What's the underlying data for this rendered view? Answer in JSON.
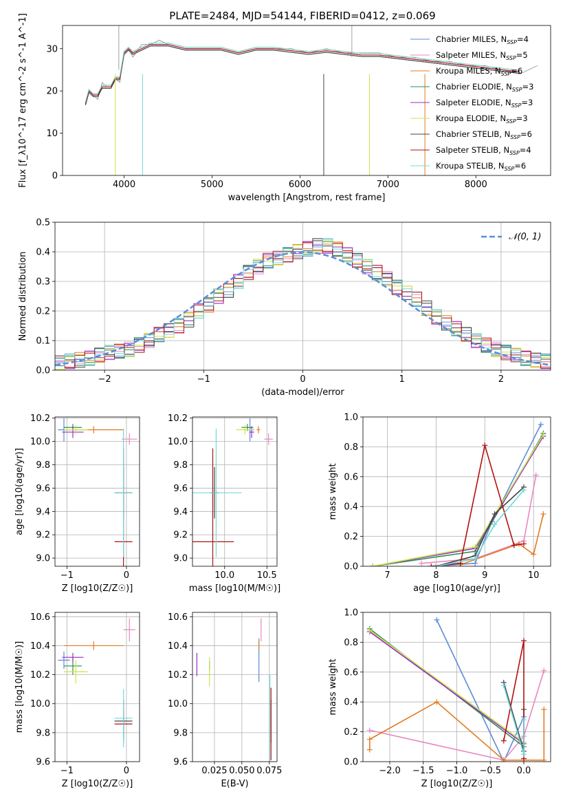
{
  "figure_title": "PLATE=2484, MJD=54144, FIBERID=0412, z=0.069",
  "colors": {
    "chabrier_miles": "#5b8bd8",
    "salpeter_miles": "#e887c0",
    "kroupa_miles": "#e07b20",
    "chabrier_elodie": "#2e8b57",
    "salpeter_elodie": "#9a2dc8",
    "kroupa_elodie": "#cbe640",
    "chabrier_stelib": "#444444",
    "salpeter_stelib": "#b01010",
    "kroupa_stelib": "#70d8dc",
    "gauss": "#5b8bd8",
    "grid": "#b0b0b0"
  },
  "chart_data": [
    {
      "id": "spectrum",
      "type": "line",
      "title": "PLATE=2484, MJD=54144, FIBERID=0412, z=0.069",
      "xlabel": "wavelength [Angstrom, rest frame]",
      "ylabel": "Flux [f_λ10^-17 erg cm^-2 s^-1 A^-1]",
      "xlim": [
        3300,
        8850
      ],
      "ylim": [
        0,
        35.5
      ],
      "xticks": [
        4000,
        5000,
        6000,
        7000,
        8000
      ],
      "yticks": [
        0,
        10,
        20,
        30
      ],
      "grid": false,
      "legend_position": "top-right",
      "legend": [
        "Chabrier MILES, N_SSP=4",
        "Salpeter MILES, N_SSP=5",
        "Kroupa MILES, N_SSP=6",
        "Chabrier ELODIE, N_SSP=3",
        "Salpeter ELODIE, N_SSP=3",
        "Kroupa ELODIE, N_SSP=3",
        "Chabrier STELIB, N_SSP=6",
        "Salpeter STELIB, N_SSP=4",
        "Kroupa STELIB, N_SSP=6"
      ],
      "data_spectrum": {
        "x": [
          3560,
          3600,
          3650,
          3700,
          3750,
          3800,
          3850,
          3900,
          3950,
          4000,
          4050,
          4100,
          4200,
          4300,
          4400,
          4500,
          4700,
          4900,
          5100,
          5300,
          5500,
          5700,
          5900,
          6100,
          6300,
          6500,
          6700,
          6900,
          7100,
          7300,
          7500,
          7700,
          7900,
          8100,
          8300,
          8500,
          8700
        ],
        "y": [
          17,
          20,
          19,
          18,
          22,
          21,
          21,
          23,
          22,
          29,
          30,
          28,
          31,
          31,
          32,
          31,
          30,
          30,
          30,
          29,
          30,
          30,
          30,
          29,
          30,
          29,
          29,
          29,
          28,
          28,
          27,
          27,
          26,
          26,
          25,
          24,
          26
        ]
      },
      "model_series": {
        "x": [
          3560,
          3600,
          3650,
          3700,
          3750,
          3800,
          3850,
          3900,
          3950,
          4000,
          4050,
          4100,
          4200,
          4300,
          4400,
          4500,
          4700,
          4900,
          5100,
          5300,
          5500,
          5700,
          5900,
          6100,
          6300,
          6500,
          6700,
          6900,
          7100,
          7300,
          7500,
          7700,
          7900,
          8100,
          8300,
          8500
        ],
        "y": [
          17,
          20,
          19,
          19,
          21,
          21,
          21,
          23,
          23,
          29,
          30,
          29,
          30,
          31,
          31,
          31,
          30,
          30,
          30,
          29,
          30,
          30,
          29.5,
          29,
          29.5,
          29,
          28.5,
          28.5,
          28,
          27.5,
          27,
          26.5,
          26,
          25.5,
          25,
          24.5
        ]
      }
    },
    {
      "id": "residuals",
      "type": "step",
      "xlabel": "(data-model)/error",
      "ylabel": "Normed distribution",
      "xlim": [
        -2.5,
        2.5
      ],
      "ylim": [
        0,
        0.5
      ],
      "xticks": [
        -2,
        -1,
        0,
        1,
        2
      ],
      "yticks": [
        0.0,
        0.1,
        0.2,
        0.3,
        0.4,
        0.5
      ],
      "grid": true,
      "legend_position": "top-right",
      "gauss_label": "𝒩(0, 1)",
      "bin_edges": [
        -2.5,
        -2.4,
        -2.3,
        -2.2,
        -2.1,
        -2.0,
        -1.9,
        -1.8,
        -1.7,
        -1.6,
        -1.5,
        -1.4,
        -1.3,
        -1.2,
        -1.1,
        -1.0,
        -0.9,
        -0.8,
        -0.7,
        -0.6,
        -0.5,
        -0.4,
        -0.3,
        -0.2,
        -0.1,
        0.0,
        0.1,
        0.2,
        0.3,
        0.4,
        0.5,
        0.6,
        0.7,
        0.8,
        0.9,
        1.0,
        1.1,
        1.2,
        1.3,
        1.4,
        1.5,
        1.6,
        1.7,
        1.8,
        1.9,
        2.0,
        2.1,
        2.2,
        2.3,
        2.4,
        2.5
      ],
      "base_values": [
        0.025,
        0.03,
        0.035,
        0.04,
        0.05,
        0.06,
        0.065,
        0.07,
        0.085,
        0.1,
        0.12,
        0.135,
        0.15,
        0.17,
        0.2,
        0.22,
        0.25,
        0.27,
        0.3,
        0.33,
        0.35,
        0.37,
        0.38,
        0.39,
        0.4,
        0.41,
        0.42,
        0.42,
        0.41,
        0.39,
        0.37,
        0.35,
        0.33,
        0.31,
        0.28,
        0.26,
        0.24,
        0.21,
        0.18,
        0.16,
        0.14,
        0.12,
        0.1,
        0.085,
        0.07,
        0.06,
        0.05,
        0.04,
        0.035,
        0.03
      ]
    },
    {
      "id": "age_vs_Z",
      "type": "errorbar",
      "xlabel": "Z [log10(Z/Z☉)]",
      "ylabel": "age  [log10(age/yr)]",
      "xlim": [
        -1.2,
        0.22
      ],
      "ylim": [
        8.93,
        10.21
      ],
      "xticks": [
        -1,
        0
      ],
      "yticks": [
        9.0,
        9.2,
        9.4,
        9.6,
        9.8,
        10.0,
        10.2
      ],
      "grid": true,
      "points": [
        {
          "s": "chabrier_miles",
          "x": -1.05,
          "y": 10.1,
          "xe": 0.1,
          "ye": 0.1
        },
        {
          "s": "salpeter_miles",
          "x": 0.05,
          "y": 10.02,
          "xe": 0.13,
          "ye": 0.05
        },
        {
          "s": "kroupa_miles",
          "x": -0.55,
          "y": 10.1,
          "xe": 0.5,
          "ye": 0.03
        },
        {
          "s": "chabrier_elodie",
          "x": -0.9,
          "y": 10.12,
          "xe": 0.15,
          "ye": 0.03
        },
        {
          "s": "salpeter_elodie",
          "x": -0.9,
          "y": 10.08,
          "xe": 0.18,
          "ye": 0.05
        },
        {
          "s": "kroupa_elodie",
          "x": -0.85,
          "y": 10.1,
          "xe": 0.2,
          "ye": 0.04
        },
        {
          "s": "chabrier_stelib",
          "x": -0.05,
          "y": 9.56,
          "xe": 0.15,
          "ye": 0.22
        },
        {
          "s": "salpeter_stelib",
          "x": -0.05,
          "y": 9.14,
          "xe": 0.15,
          "ye": 0.8
        },
        {
          "s": "kroupa_stelib",
          "x": -0.05,
          "y": 9.56,
          "xe": 0.15,
          "ye": 0.55
        }
      ]
    },
    {
      "id": "age_vs_mass",
      "type": "errorbar",
      "xlabel": "mass [log10(M/M☉)]",
      "ylabel": "",
      "xlim": [
        9.62,
        10.62
      ],
      "ylim": [
        8.93,
        10.21
      ],
      "xticks": [
        10.0,
        10.5
      ],
      "yticks": [
        9.0,
        9.2,
        9.4,
        9.6,
        9.8,
        10.0,
        10.2
      ],
      "grid": true,
      "points": [
        {
          "s": "chabrier_miles",
          "x": 10.3,
          "y": 10.1,
          "xe": 0.05,
          "ye": 0.1
        },
        {
          "s": "salpeter_miles",
          "x": 10.52,
          "y": 10.02,
          "xe": 0.05,
          "ye": 0.05
        },
        {
          "s": "kroupa_miles",
          "x": 10.4,
          "y": 10.1,
          "xe": 0.02,
          "ye": 0.03
        },
        {
          "s": "chabrier_elodie",
          "x": 10.27,
          "y": 10.12,
          "xe": 0.07,
          "ye": 0.03
        },
        {
          "s": "salpeter_elodie",
          "x": 10.32,
          "y": 10.08,
          "xe": 0.03,
          "ye": 0.05
        },
        {
          "s": "kroupa_elodie",
          "x": 10.24,
          "y": 10.1,
          "xe": 0.1,
          "ye": 0.04
        },
        {
          "s": "chabrier_stelib",
          "x": 9.88,
          "y": 9.56,
          "xe": 0.05,
          "ye": 0.22
        },
        {
          "s": "salpeter_stelib",
          "x": 9.86,
          "y": 9.14,
          "xe": 0.25,
          "ye": 0.8
        },
        {
          "s": "kroupa_stelib",
          "x": 9.9,
          "y": 9.56,
          "xe": 0.3,
          "ye": 0.55
        }
      ]
    },
    {
      "id": "weight_vs_age",
      "type": "line",
      "xlabel": "age  [log10(age/yr)]",
      "ylabel": "mass weight",
      "xlim": [
        6.5,
        10.35
      ],
      "ylim": [
        0,
        1.0
      ],
      "xticks": [
        7,
        8,
        9,
        10
      ],
      "yticks": [
        0.0,
        0.2,
        0.4,
        0.6,
        0.8,
        1.0
      ],
      "grid": true,
      "series": [
        {
          "s": "chabrier_miles",
          "x": [
            8.0,
            8.8,
            9.15,
            10.15
          ],
          "y": [
            0.0,
            0.02,
            0.3,
            0.95
          ]
        },
        {
          "s": "salpeter_miles",
          "x": [
            7.7,
            8.8,
            9.8,
            10.05
          ],
          "y": [
            0.02,
            0.05,
            0.17,
            0.61
          ]
        },
        {
          "s": "kroupa_miles",
          "x": [
            8.5,
            9.7,
            10.0,
            10.2
          ],
          "y": [
            0.01,
            0.15,
            0.08,
            0.35
          ]
        },
        {
          "s": "chabrier_elodie",
          "x": [
            6.7,
            8.8,
            10.2
          ],
          "y": [
            0.0,
            0.1,
            0.89
          ]
        },
        {
          "s": "salpeter_elodie",
          "x": [
            6.7,
            8.8,
            10.2
          ],
          "y": [
            0.0,
            0.12,
            0.87
          ]
        },
        {
          "s": "kroupa_elodie",
          "x": [
            6.7,
            8.8,
            10.2
          ],
          "y": [
            0.0,
            0.13,
            0.88
          ]
        },
        {
          "s": "chabrier_stelib",
          "x": [
            8.0,
            8.8,
            9.2,
            9.8
          ],
          "y": [
            0.0,
            0.07,
            0.35,
            0.53
          ]
        },
        {
          "s": "salpeter_stelib",
          "x": [
            7.9,
            8.5,
            9.0,
            9.6,
            9.8
          ],
          "y": [
            0.0,
            0.02,
            0.81,
            0.14,
            0.15
          ]
        },
        {
          "s": "kroupa_stelib",
          "x": [
            8.0,
            8.8,
            9.2,
            9.8
          ],
          "y": [
            0.0,
            0.05,
            0.28,
            0.51
          ]
        }
      ]
    },
    {
      "id": "mass_vs_Z",
      "type": "errorbar",
      "xlabel": "Z [log10(Z/Z☉)]",
      "ylabel": "mass [log10(M/M☉)]",
      "xlim": [
        -1.2,
        0.22
      ],
      "ylim": [
        9.6,
        10.63
      ],
      "xticks": [
        -1,
        0
      ],
      "yticks": [
        9.6,
        9.8,
        10.0,
        10.2,
        10.4,
        10.6
      ],
      "grid": true,
      "points": [
        {
          "s": "chabrier_miles",
          "x": -1.05,
          "y": 10.3,
          "xe": 0.1,
          "ye": 0.06
        },
        {
          "s": "salpeter_miles",
          "x": 0.05,
          "y": 10.51,
          "xe": 0.1,
          "ye": 0.08
        },
        {
          "s": "kroupa_miles",
          "x": -0.55,
          "y": 10.4,
          "xe": 0.5,
          "ye": 0.03
        },
        {
          "s": "chabrier_elodie",
          "x": -0.9,
          "y": 10.26,
          "xe": 0.15,
          "ye": 0.06
        },
        {
          "s": "salpeter_elodie",
          "x": -0.9,
          "y": 10.32,
          "xe": 0.18,
          "ye": 0.03
        },
        {
          "s": "kroupa_elodie",
          "x": -0.85,
          "y": 10.22,
          "xe": 0.2,
          "ye": 0.08
        },
        {
          "s": "chabrier_stelib",
          "x": -0.05,
          "y": 9.88,
          "xe": 0.15,
          "ye": 0.15
        },
        {
          "s": "salpeter_stelib",
          "x": -0.05,
          "y": 9.86,
          "xe": 0.15,
          "ye": 0.1
        },
        {
          "s": "kroupa_stelib",
          "x": -0.05,
          "y": 9.9,
          "xe": 0.15,
          "ye": 0.2
        }
      ]
    },
    {
      "id": "mass_vs_ebv",
      "type": "errorbar",
      "xlabel": "E(B-V)",
      "ylabel": "",
      "xlim": [
        0.005,
        0.082
      ],
      "ylim": [
        9.6,
        10.63
      ],
      "xticks": [
        0.025,
        0.05,
        0.075
      ],
      "xticklabels": [
        "0.025",
        "0.050",
        "0.075"
      ],
      "yticks": [
        9.6,
        9.8,
        10.0,
        10.2,
        10.4,
        10.6
      ],
      "grid": true,
      "points": [
        {
          "s": "chabrier_miles",
          "x": 0.0655,
          "y": 10.3,
          "xe": 0,
          "ye": 0.15
        },
        {
          "s": "salpeter_miles",
          "x": 0.0675,
          "y": 10.51,
          "xe": 0,
          "ye": 0.08
        },
        {
          "s": "kroupa_miles",
          "x": 0.0655,
          "y": 10.4,
          "xe": 0,
          "ye": 0.03
        },
        {
          "s": "chabrier_elodie",
          "x": 0.0205,
          "y": 10.26,
          "xe": 0,
          "ye": 0.03
        },
        {
          "s": "salpeter_elodie",
          "x": 0.009,
          "y": 10.27,
          "xe": 0,
          "ye": 0.08
        },
        {
          "s": "kroupa_elodie",
          "x": 0.0205,
          "y": 10.22,
          "xe": 0,
          "ye": 0.1
        },
        {
          "s": "chabrier_stelib",
          "x": 0.0765,
          "y": 9.88,
          "xe": 0,
          "ye": 0.15
        },
        {
          "s": "salpeter_stelib",
          "x": 0.0765,
          "y": 9.86,
          "xe": 0,
          "ye": 0.25
        },
        {
          "s": "kroupa_stelib",
          "x": 0.0755,
          "y": 9.9,
          "xe": 0,
          "ye": 0.3
        }
      ]
    },
    {
      "id": "weight_vs_Z",
      "type": "line",
      "xlabel": "Z [log10(Z/Z☉)]",
      "ylabel": "mass weight",
      "xlim": [
        -2.4,
        0.4
      ],
      "ylim": [
        0,
        1.0
      ],
      "xticks": [
        -2.0,
        -1.5,
        -1.0,
        -0.5,
        0.0
      ],
      "yticks": [
        0.0,
        0.2,
        0.4,
        0.6,
        0.8,
        1.0
      ],
      "grid": true,
      "series": [
        {
          "s": "chabrier_miles",
          "x": [
            -1.3,
            -0.3,
            0.0
          ],
          "y": [
            0.95,
            0.0,
            0.3
          ]
        },
        {
          "s": "salpeter_miles",
          "x": [
            -2.3,
            -0.3,
            0.0,
            0.3
          ],
          "y": [
            0.21,
            0.01,
            0.17,
            0.61
          ]
        },
        {
          "s": "kroupa_miles",
          "x": [
            -2.3,
            -2.3,
            -1.3,
            -0.3,
            0.3,
            0.3
          ],
          "y": [
            0.08,
            0.15,
            0.4,
            0.01,
            0.01,
            0.35
          ]
        },
        {
          "s": "chabrier_elodie",
          "x": [
            -2.3,
            0.0
          ],
          "y": [
            0.89,
            0.1
          ]
        },
        {
          "s": "salpeter_elodie",
          "x": [
            -2.3,
            0.0
          ],
          "y": [
            0.87,
            0.12
          ]
        },
        {
          "s": "kroupa_elodie",
          "x": [
            -2.3,
            0.0
          ],
          "y": [
            0.88,
            0.13
          ]
        },
        {
          "s": "chabrier_stelib",
          "x": [
            -0.3,
            0.0,
            0.0
          ],
          "y": [
            0.53,
            0.07,
            0.35
          ]
        },
        {
          "s": "salpeter_stelib",
          "x": [
            -0.3,
            0.0,
            0.0
          ],
          "y": [
            0.14,
            0.81,
            0.02
          ]
        },
        {
          "s": "kroupa_stelib",
          "x": [
            -0.3,
            0.0,
            0.0
          ],
          "y": [
            0.51,
            0.05,
            0.28
          ]
        }
      ]
    }
  ]
}
